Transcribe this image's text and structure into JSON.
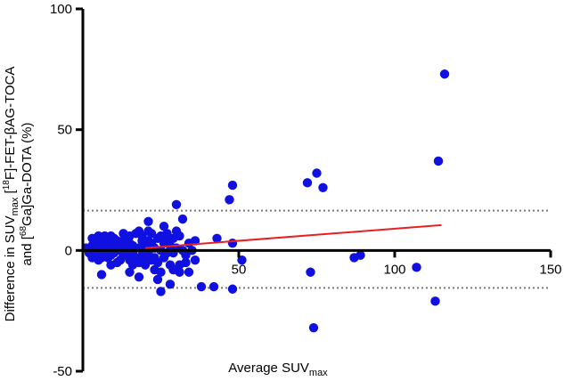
{
  "chart_data": {
    "type": "scatter",
    "title": "",
    "xlabel": {
      "main": "Average SUV",
      "sub": "max"
    },
    "ylabel": {
      "line1": {
        "pre": "Difference in SUV",
        "sub": "max",
        "mid": " [",
        "sup": "18",
        "post": "F]-FET-βAG-TOCA"
      },
      "line2": {
        "pre": "and [",
        "sup": "68",
        "post": "Ga]Ga-DOTA (%)"
      }
    },
    "xlim": [
      0,
      150
    ],
    "ylim": [
      -50,
      100
    ],
    "x_ticks": [
      50,
      100,
      150
    ],
    "x_tick_labels": [
      "50",
      "100",
      "150"
    ],
    "y_ticks": [
      -50,
      0,
      50,
      100
    ],
    "y_tick_labels": [
      "-50",
      "0",
      "50",
      "100"
    ],
    "grid": false,
    "point_color": "#1010e0",
    "limit_line_color": "#7a7a7a",
    "regression_color": "#e82020",
    "limits_of_agreement": [
      16.5,
      -15.5
    ],
    "regression_line": {
      "x": [
        20,
        115
      ],
      "y": [
        1,
        10.5
      ]
    },
    "points": [
      {
        "x": 116,
        "y": 73
      },
      {
        "x": 114,
        "y": 37
      },
      {
        "x": 113,
        "y": -21
      },
      {
        "x": 107,
        "y": -7
      },
      {
        "x": 75,
        "y": 32
      },
      {
        "x": 72,
        "y": 28
      },
      {
        "x": 77,
        "y": 26
      },
      {
        "x": 73,
        "y": -9
      },
      {
        "x": 74,
        "y": -32
      },
      {
        "x": 87,
        "y": -3
      },
      {
        "x": 89,
        "y": -2
      },
      {
        "x": 48,
        "y": 27
      },
      {
        "x": 47,
        "y": 21
      },
      {
        "x": 48,
        "y": 3
      },
      {
        "x": 48,
        "y": -16
      },
      {
        "x": 51,
        "y": -4
      },
      {
        "x": 43,
        "y": 5
      },
      {
        "x": 42,
        "y": -15
      },
      {
        "x": 38,
        "y": -15
      },
      {
        "x": 36,
        "y": -4
      },
      {
        "x": 30,
        "y": 19
      },
      {
        "x": 32,
        "y": 13
      },
      {
        "x": 25,
        "y": -17
      },
      {
        "x": 28,
        "y": -14
      },
      {
        "x": 24,
        "y": -12
      },
      {
        "x": 31,
        "y": -6
      },
      {
        "x": 33,
        "y": -2
      },
      {
        "x": 34,
        "y": 3
      },
      {
        "x": 30,
        "y": 8
      },
      {
        "x": 26,
        "y": 10
      },
      {
        "x": 21,
        "y": 12
      },
      {
        "x": 18,
        "y": -11
      },
      {
        "x": 15,
        "y": -9
      },
      {
        "x": 9,
        "y": -6
      },
      {
        "x": 6,
        "y": -10
      },
      {
        "x": 20,
        "y": -6
      },
      {
        "x": 23,
        "y": -8
      },
      {
        "x": 27,
        "y": -1
      },
      {
        "x": 28,
        "y": 2
      },
      {
        "x": 29,
        "y": 5
      },
      {
        "x": 27,
        "y": 7
      },
      {
        "x": 25,
        "y": 6
      },
      {
        "x": 22,
        "y": 3
      },
      {
        "x": 23,
        "y": -3
      },
      {
        "x": 21,
        "y": -1
      },
      {
        "x": 19,
        "y": 4
      },
      {
        "x": 18,
        "y": 8
      },
      {
        "x": 17,
        "y": -3
      },
      {
        "x": 16,
        "y": 2
      },
      {
        "x": 15,
        "y": 6
      },
      {
        "x": 14,
        "y": -1
      },
      {
        "x": 13,
        "y": 4
      },
      {
        "x": 12,
        "y": -4
      },
      {
        "x": 11,
        "y": 1
      },
      {
        "x": 10,
        "y": 5
      },
      {
        "x": 9,
        "y": -2
      },
      {
        "x": 8,
        "y": 3
      },
      {
        "x": 7,
        "y": -1
      },
      {
        "x": 6,
        "y": 4
      },
      {
        "x": 5,
        "y": 1
      },
      {
        "x": 4,
        "y": -2
      },
      {
        "x": 3,
        "y": 2
      },
      {
        "x": 2,
        "y": 0
      },
      {
        "x": 1,
        "y": 1
      },
      {
        "x": 2,
        "y": -1
      },
      {
        "x": 3,
        "y": -3
      },
      {
        "x": 4,
        "y": 3
      },
      {
        "x": 5,
        "y": -4
      },
      {
        "x": 6,
        "y": -3
      },
      {
        "x": 7,
        "y": 2
      },
      {
        "x": 8,
        "y": -3
      },
      {
        "x": 9,
        "y": 6
      },
      {
        "x": 10,
        "y": -1
      },
      {
        "x": 11,
        "y": -5
      },
      {
        "x": 12,
        "y": 3
      },
      {
        "x": 13,
        "y": -2
      },
      {
        "x": 14,
        "y": 5
      },
      {
        "x": 15,
        "y": -4
      },
      {
        "x": 16,
        "y": -6
      },
      {
        "x": 17,
        "y": 7
      },
      {
        "x": 18,
        "y": 1
      },
      {
        "x": 19,
        "y": -2
      },
      {
        "x": 20,
        "y": 2
      },
      {
        "x": 21,
        "y": 8
      },
      {
        "x": 22,
        "y": -4
      },
      {
        "x": 23,
        "y": 1
      },
      {
        "x": 24,
        "y": -5
      },
      {
        "x": 25,
        "y": 0
      },
      {
        "x": 26,
        "y": -3
      },
      {
        "x": 27,
        "y": 4
      },
      {
        "x": 28,
        "y": -6
      },
      {
        "x": 29,
        "y": -1
      },
      {
        "x": 30,
        "y": 1
      },
      {
        "x": 31,
        "y": -9
      },
      {
        "x": 32,
        "y": 0
      },
      {
        "x": 33,
        "y": -5
      },
      {
        "x": 24,
        "y": 5
      },
      {
        "x": 22,
        "y": 7
      },
      {
        "x": 20,
        "y": -3
      },
      {
        "x": 14,
        "y": 1
      },
      {
        "x": 12,
        "y": 0
      },
      {
        "x": 10,
        "y": 2
      },
      {
        "x": 8,
        "y": 0
      },
      {
        "x": 6,
        "y": 0
      },
      {
        "x": 4,
        "y": 0
      },
      {
        "x": 3,
        "y": 5
      },
      {
        "x": 5,
        "y": 6
      },
      {
        "x": 7,
        "y": 6
      },
      {
        "x": 11,
        "y": 4
      },
      {
        "x": 13,
        "y": 7
      },
      {
        "x": 15,
        "y": 3
      },
      {
        "x": 16,
        "y": -1
      },
      {
        "x": 18,
        "y": -5
      },
      {
        "x": 19,
        "y": 6
      },
      {
        "x": 21,
        "y": 4
      },
      {
        "x": 25,
        "y": -9
      },
      {
        "x": 26,
        "y": 3
      },
      {
        "x": 29,
        "y": -8
      },
      {
        "x": 31,
        "y": 6
      },
      {
        "x": 34,
        "y": -9
      },
      {
        "x": 35,
        "y": 0
      },
      {
        "x": 36,
        "y": 4
      }
    ]
  }
}
